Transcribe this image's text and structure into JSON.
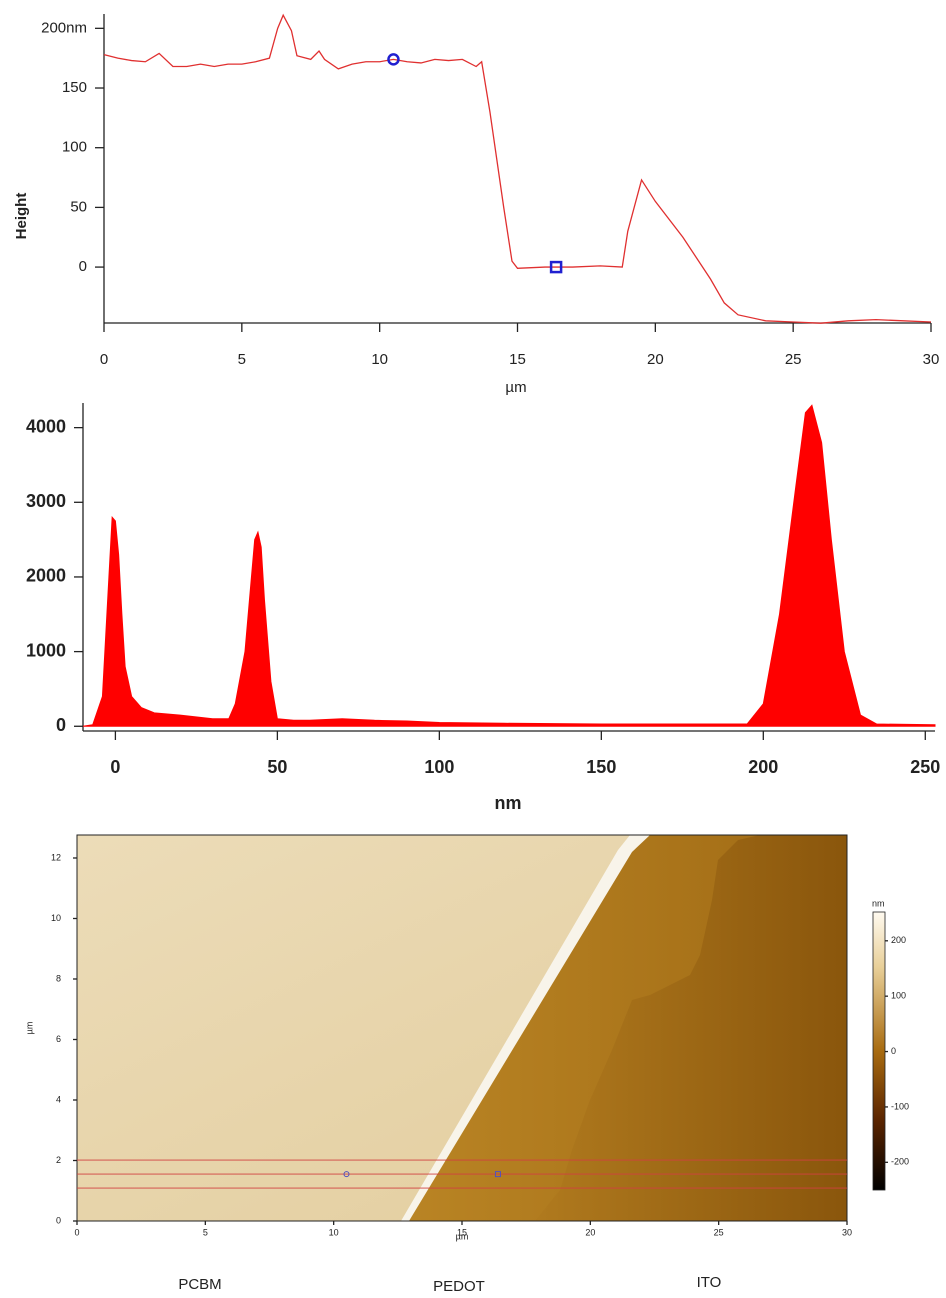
{
  "chart_data": [
    {
      "type": "line",
      "ylabel": "Height",
      "xlabel": "µm",
      "color": "#e03030",
      "x": [
        0,
        0.5,
        1,
        1.5,
        2,
        2.5,
        3,
        3.5,
        4,
        4.5,
        5,
        5.5,
        6,
        6.3,
        6.5,
        6.8,
        7,
        7.5,
        7.8,
        8,
        8.5,
        9,
        9.5,
        10,
        10.5,
        11,
        11.5,
        12,
        12.5,
        13,
        13.5,
        13.7,
        14,
        14.5,
        14.8,
        15,
        16,
        17,
        18,
        18.8,
        19,
        19.5,
        20,
        21,
        22,
        22.5,
        23,
        24,
        25,
        26,
        27,
        28,
        29,
        30
      ],
      "values": [
        178,
        175,
        173,
        172,
        179,
        168,
        168,
        170,
        168,
        170,
        170,
        172,
        175,
        200,
        211,
        198,
        177,
        174,
        181,
        174,
        166,
        170,
        172,
        172,
        174,
        172,
        171,
        174,
        173,
        174,
        168,
        172,
        130,
        50,
        5,
        -1,
        0,
        0,
        1,
        0,
        30,
        73,
        55,
        25,
        -10,
        -30,
        -40,
        -45,
        -46,
        -47,
        -45,
        -44,
        -45,
        -46
      ],
      "cursors": {
        "x": [
          10.5,
          16.4
        ],
        "values": [
          174,
          0
        ],
        "color": "#2020d0"
      },
      "xlim": [
        0,
        30
      ],
      "xticks": [
        0,
        5,
        10,
        15,
        20,
        25,
        30
      ],
      "ylim": [
        -46,
        212
      ],
      "yticks": [
        0,
        50,
        100,
        150,
        {
          "value": 200,
          "label": "200nm"
        }
      ]
    },
    {
      "type": "area",
      "xlabel": "nm",
      "color": "#ff0000",
      "x": [
        -10,
        -7,
        -4,
        -2,
        -1,
        0,
        1,
        2,
        3,
        5,
        8,
        12,
        20,
        30,
        35,
        37,
        40,
        42,
        43,
        44,
        45,
        46,
        48,
        50,
        55,
        60,
        70,
        80,
        90,
        100,
        120,
        150,
        180,
        195,
        200,
        205,
        210,
        213,
        215,
        218,
        221,
        225,
        230,
        235,
        253
      ],
      "values": [
        0,
        20,
        400,
        2000,
        2800,
        2750,
        2300,
        1500,
        800,
        400,
        250,
        180,
        150,
        100,
        100,
        300,
        1000,
        2000,
        2500,
        2600,
        2400,
        1700,
        600,
        100,
        80,
        80,
        100,
        80,
        70,
        50,
        40,
        30,
        30,
        30,
        300,
        1500,
        3200,
        4200,
        4300,
        3800,
        2500,
        1000,
        150,
        30,
        20
      ],
      "xlim": [
        -10,
        253
      ],
      "xticks": [
        0,
        50,
        100,
        150,
        200,
        250
      ],
      "ylim": [
        -50,
        4330
      ],
      "yticks": [
        0,
        1000,
        2000,
        3000,
        4000
      ]
    },
    {
      "type": "image",
      "xlabel": "µm",
      "ylabel": "µm",
      "xlim": [
        0,
        30
      ],
      "xticks": [
        0,
        5,
        10,
        15,
        20,
        25,
        30
      ],
      "ylim": [
        0,
        12.76
      ],
      "yticks": [
        0,
        2,
        4,
        6,
        8,
        10,
        12
      ],
      "cursors": {
        "x": [
          10.5,
          16.4
        ],
        "values": [
          1.55,
          1.55
        ],
        "color": "#5050c0"
      },
      "colorbar": {
        "label": "nm",
        "lim": [
          -250,
          252
        ],
        "ticks": [
          -200,
          -100,
          0,
          100,
          200
        ]
      },
      "region_labels": [
        "PCBM",
        "PEDOT",
        "ITO"
      ]
    }
  ]
}
